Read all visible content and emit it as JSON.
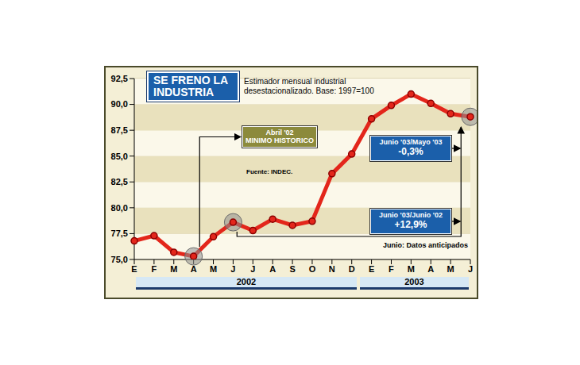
{
  "chart_data": {
    "type": "line",
    "title": "SE FRENO LA INDUSTRIA",
    "subtitle": "Estimador mensual industrial desestacionalizado. Base: 1997=100",
    "source": "Fuente: INDEC.",
    "note": "Junio: Datos anticipados",
    "categories": [
      "E",
      "F",
      "M",
      "A",
      "M",
      "J",
      "J",
      "A",
      "S",
      "O",
      "N",
      "D",
      "E",
      "F",
      "M",
      "A",
      "M",
      "J"
    ],
    "year_groups": [
      {
        "label": "2002",
        "months": 12
      },
      {
        "label": "2003",
        "months": 6
      }
    ],
    "values": [
      76.8,
      77.3,
      75.7,
      75.3,
      77.2,
      78.6,
      77.8,
      78.9,
      78.3,
      78.7,
      83.3,
      85.2,
      88.6,
      89.9,
      91.0,
      90.1,
      89.1,
      88.8
    ],
    "color": "#e3261b",
    "marker": "circle",
    "ylim": [
      75,
      92.5
    ],
    "yticks": [
      {
        "value": 75,
        "label": "75,0"
      },
      {
        "value": 77.5,
        "label": "77,5"
      },
      {
        "value": 80,
        "label": "80,0"
      },
      {
        "value": 82.5,
        "label": "82,5"
      },
      {
        "value": 85,
        "label": "85,0"
      },
      {
        "value": 87.5,
        "label": "87,5"
      },
      {
        "value": 90,
        "label": "90,0"
      },
      {
        "value": 92.5,
        "label": "92,5"
      }
    ],
    "grid": true,
    "annotations": [
      {
        "lines": [
          "Abril '02",
          "MINIMO HISTORICO"
        ],
        "points": [
          3
        ]
      },
      {
        "lines": [
          "Junio '03/Mayo '03",
          "-0,3%"
        ],
        "points": [
          17
        ]
      },
      {
        "lines": [
          "Junio '03/Junio '02",
          "+12,9%"
        ],
        "points": [
          5,
          17
        ]
      }
    ]
  }
}
